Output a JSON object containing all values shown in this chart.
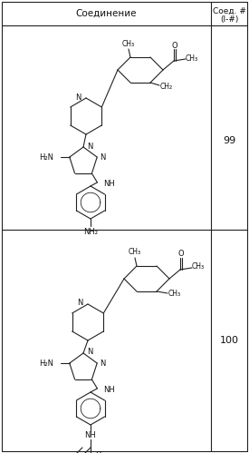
{
  "background_color": "#ffffff",
  "header_text1": "Соединение",
  "header_text2_line1": "Соед. #",
  "header_text2_line2": "(I-#)",
  "compound_99": "99",
  "compound_100": "100",
  "fig_width": 2.75,
  "fig_height": 4.99,
  "dpi": 100
}
